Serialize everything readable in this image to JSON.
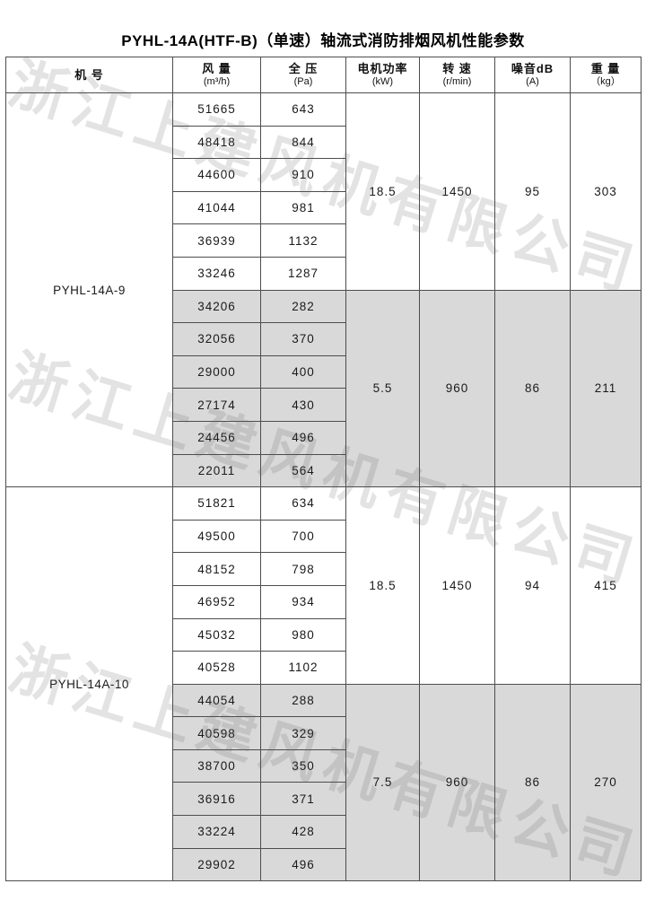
{
  "page": {
    "title": "PYHL-14A(HTF-B)（单速）轴流式消防排烟风机性能参数"
  },
  "watermark": {
    "text": "浙江上建风机有限公司"
  },
  "colors": {
    "shaded_row": "#d9d9d9",
    "border": "#4d4d4d",
    "text": "#1a1a1a"
  },
  "table": {
    "headers": [
      {
        "label": "机 号",
        "unit": ""
      },
      {
        "label": "风 量",
        "unit": "(m³/h)"
      },
      {
        "label": "全 压",
        "unit": "(Pa)"
      },
      {
        "label": "电机功率",
        "unit": "(kW)"
      },
      {
        "label": "转 速",
        "unit": "(r/min)"
      },
      {
        "label": "噪音dB",
        "unit": "(A)"
      },
      {
        "label": "重 量",
        "unit": "（kg）"
      }
    ],
    "models": [
      {
        "model": "PYHL-14A-9",
        "blocks": [
          {
            "shaded": false,
            "rows": [
              [
                51665,
                643
              ],
              [
                48418,
                844
              ],
              [
                44600,
                910
              ],
              [
                41044,
                981
              ],
              [
                36939,
                1132
              ],
              [
                33246,
                1287
              ]
            ],
            "power": "18.5",
            "speed": "1450",
            "noise": "95",
            "weight": "303"
          },
          {
            "shaded": true,
            "rows": [
              [
                34206,
                282
              ],
              [
                32056,
                370
              ],
              [
                29000,
                400
              ],
              [
                27174,
                430
              ],
              [
                24456,
                496
              ],
              [
                22011,
                564
              ]
            ],
            "power": "5.5",
            "speed": "960",
            "noise": "86",
            "weight": "211"
          }
        ]
      },
      {
        "model": "PYHL-14A-10",
        "blocks": [
          {
            "shaded": false,
            "rows": [
              [
                51821,
                634
              ],
              [
                49500,
                700
              ],
              [
                48152,
                798
              ],
              [
                46952,
                934
              ],
              [
                45032,
                980
              ],
              [
                40528,
                1102
              ]
            ],
            "power": "18.5",
            "speed": "1450",
            "noise": "94",
            "weight": "415"
          },
          {
            "shaded": true,
            "rows": [
              [
                44054,
                288
              ],
              [
                40598,
                329
              ],
              [
                38700,
                350
              ],
              [
                36916,
                371
              ],
              [
                33224,
                428
              ],
              [
                29902,
                496
              ]
            ],
            "power": "7.5",
            "speed": "960",
            "noise": "86",
            "weight": "270"
          }
        ]
      }
    ]
  }
}
